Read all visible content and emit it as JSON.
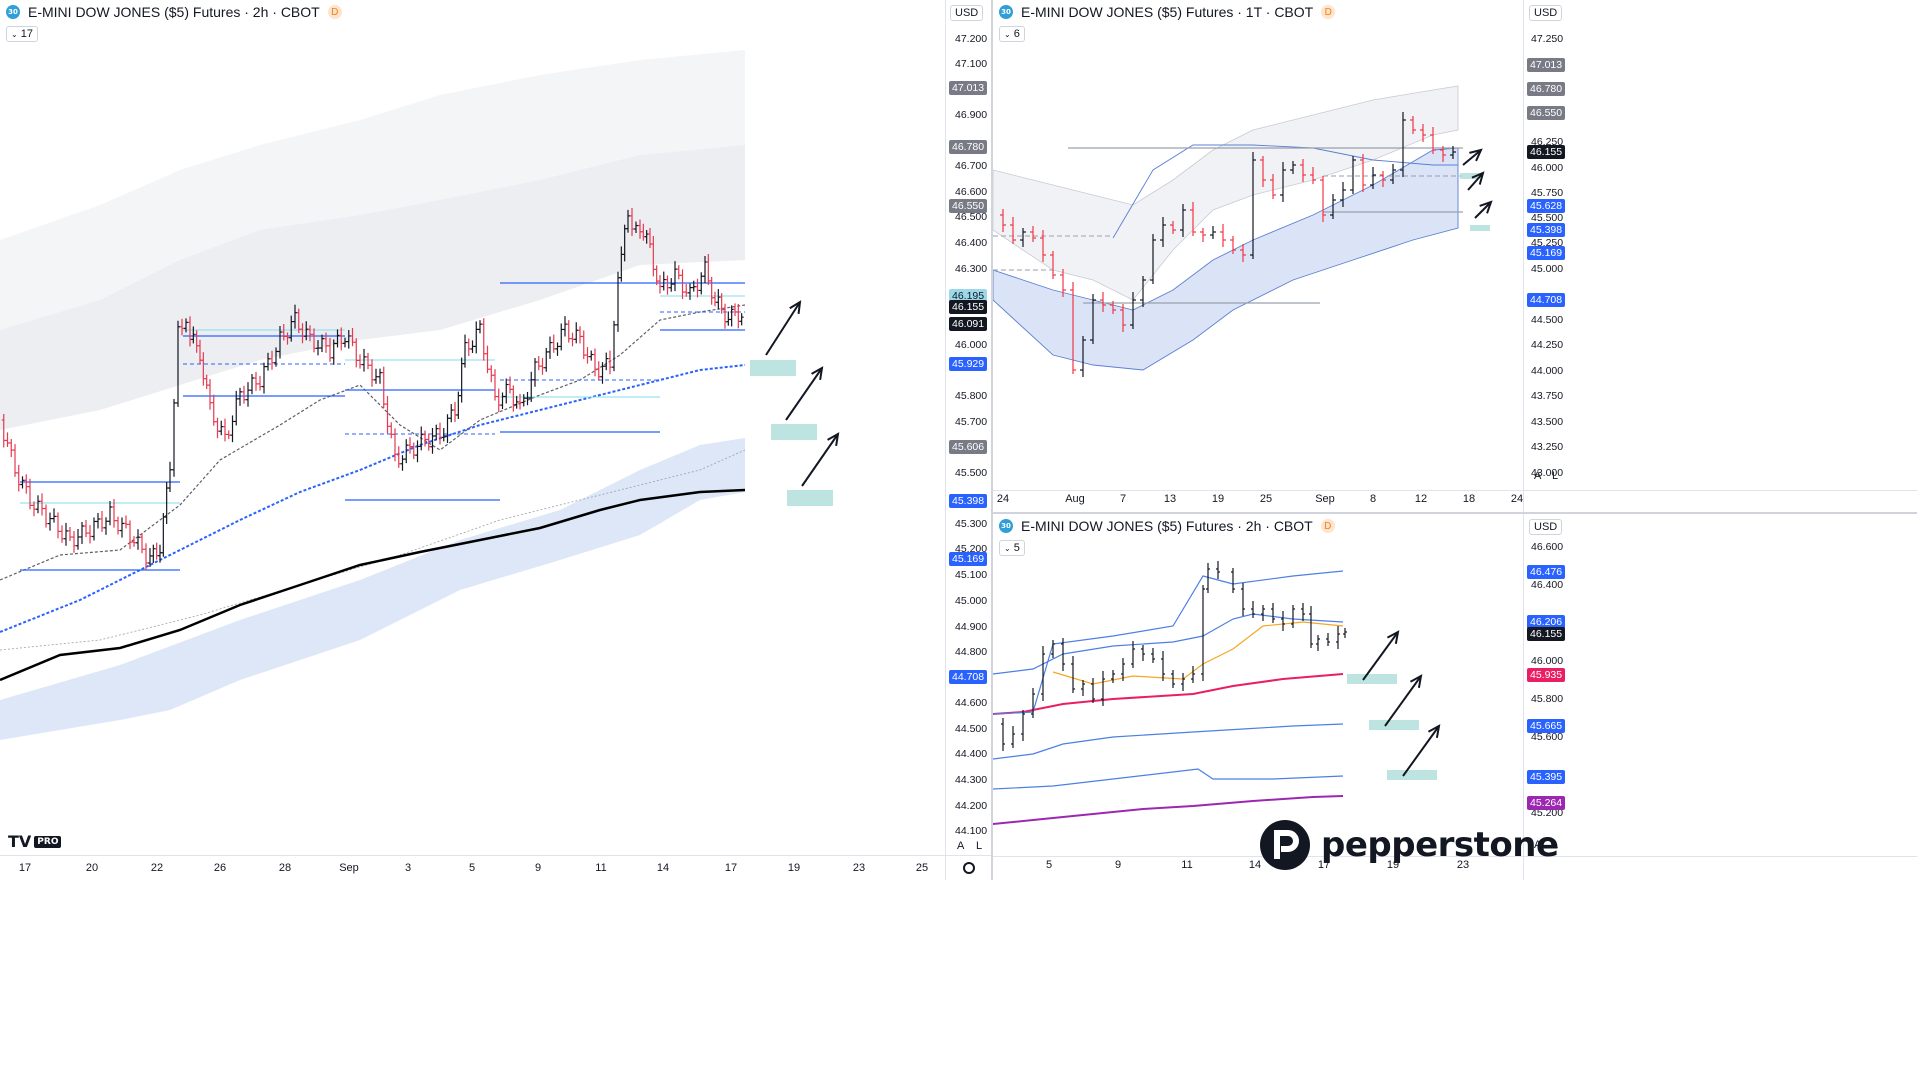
{
  "panes": [
    {
      "title": "E-MINI DOW JONES ($5) Futures · 2h · CBOT",
      "badge": "30",
      "d_badge": "D",
      "indicator_count": "17",
      "currency": "USD",
      "price_axis": [
        "47.200",
        "47.100",
        "46.900",
        "46.700",
        "46.600",
        "46.500",
        "46.400",
        "46.300",
        "46.000",
        "45.800",
        "45.700",
        "45.500",
        "45.300",
        "45.200",
        "45.100",
        "45.000",
        "44.900",
        "44.800",
        "44.600",
        "44.500",
        "44.400",
        "44.300",
        "44.200",
        "44.100"
      ],
      "price_tags": [
        {
          "text": "47.013",
          "color": "#787b86"
        },
        {
          "text": "46.780",
          "color": "#787b86"
        },
        {
          "text": "46.550",
          "color": "#787b86"
        },
        {
          "text": "46.195",
          "color": "#9dd8e8"
        },
        {
          "text": "46.155",
          "color": "#131722"
        },
        {
          "text": "46.091",
          "color": "#131722"
        },
        {
          "text": "45.929",
          "color": "#2962ff"
        },
        {
          "text": "45.606",
          "color": "#787b86"
        },
        {
          "text": "45.398",
          "color": "#2962ff"
        },
        {
          "text": "45.169",
          "color": "#2962ff"
        },
        {
          "text": "44.708",
          "color": "#2962ff"
        }
      ],
      "date_axis": [
        "17",
        "20",
        "22",
        "26",
        "28",
        "Sep",
        "3",
        "5",
        "9",
        "11",
        "14",
        "17",
        "19",
        "23",
        "25"
      ],
      "auto_label": "A",
      "log_label": "L",
      "logo": "TV PRO"
    },
    {
      "title": "E-MINI DOW JONES ($5) Futures · 1T · CBOT",
      "badge": "30",
      "d_badge": "D",
      "indicator_count": "6",
      "currency": "USD",
      "price_axis": [
        "47.250",
        "46.250",
        "46.000",
        "45.750",
        "45.500",
        "45.250",
        "45.000",
        "44.500",
        "44.250",
        "44.000",
        "43.750",
        "43.500",
        "43.250",
        "43.000"
      ],
      "price_tags": [
        {
          "text": "47.013",
          "color": "#787b86"
        },
        {
          "text": "46.780",
          "color": "#787b86"
        },
        {
          "text": "46.550",
          "color": "#787b86"
        },
        {
          "text": "46.155",
          "color": "#131722"
        },
        {
          "text": "45.628",
          "color": "#2962ff"
        },
        {
          "text": "45.398",
          "color": "#2962ff"
        },
        {
          "text": "45.169",
          "color": "#2962ff"
        },
        {
          "text": "44.708",
          "color": "#2962ff"
        }
      ],
      "date_axis": [
        "24",
        "Aug",
        "7",
        "13",
        "19",
        "25",
        "Sep",
        "8",
        "12",
        "18",
        "24"
      ],
      "auto_label": "A",
      "log_label": "L"
    },
    {
      "title": "E-MINI DOW JONES ($5) Futures · 2h · CBOT",
      "badge": "30",
      "d_badge": "D",
      "indicator_count": "5",
      "currency": "USD",
      "price_axis": [
        "46.600",
        "46.400",
        "46.000",
        "45.800",
        "45.600",
        "45.200"
      ],
      "price_tags": [
        {
          "text": "46.476",
          "color": "#2962ff"
        },
        {
          "text": "46.206",
          "color": "#2962ff"
        },
        {
          "text": "46.155",
          "color": "#131722"
        },
        {
          "text": "45.935",
          "color": "#e91e63"
        },
        {
          "text": "45.665",
          "color": "#2962ff"
        },
        {
          "text": "45.395",
          "color": "#2962ff"
        },
        {
          "text": "45.264",
          "color": "#9c27b0"
        }
      ],
      "date_axis": [
        "5",
        "9",
        "11",
        "14",
        "17",
        "19",
        "23"
      ],
      "auto_label": "A",
      "log_label": "L",
      "brand": "pepperstone"
    }
  ]
}
